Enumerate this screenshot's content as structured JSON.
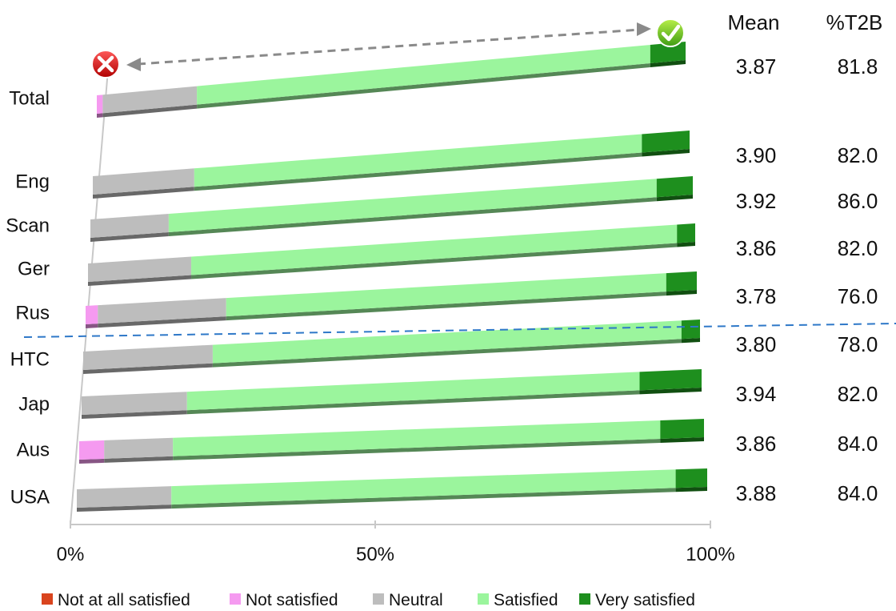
{
  "chart_data": {
    "type": "bar",
    "orientation": "horizontal",
    "stacked": true,
    "percent_stacked": true,
    "categories": [
      "Total",
      "Eng",
      "Scan",
      "Ger",
      "Rus",
      "HTC",
      "Jap",
      "Aus",
      "USA"
    ],
    "series": [
      {
        "name": "Not at all satisfied",
        "color": "#d9441e",
        "values": [
          0,
          0,
          0,
          0,
          0,
          0,
          0,
          0,
          0
        ]
      },
      {
        "name": "Not satisfied",
        "color": "#f59af0",
        "values": [
          1,
          0,
          0,
          0,
          2,
          0,
          0,
          4,
          0
        ]
      },
      {
        "name": "Neutral",
        "color": "#bdbdbd",
        "values": [
          16,
          17,
          13,
          17,
          21,
          21,
          17,
          11,
          15
        ]
      },
      {
        "name": "Satisfied",
        "color": "#9bf59d",
        "values": [
          77,
          75,
          81,
          80,
          72,
          76,
          73,
          78,
          80
        ]
      },
      {
        "name": "Very satisfied",
        "color": "#1e8f1e",
        "values": [
          6,
          8,
          6,
          3,
          5,
          3,
          10,
          7,
          5
        ]
      }
    ],
    "x_ticks": [
      "0%",
      "50%",
      "100%"
    ],
    "xlim": [
      0,
      100
    ],
    "table": {
      "headers": [
        "Mean",
        "%T2B"
      ],
      "mean": [
        "3.87",
        "3.90",
        "3.92",
        "3.86",
        "3.78",
        "3.80",
        "3.94",
        "3.86",
        "3.88"
      ],
      "t2b": [
        "81.8",
        "82.0",
        "86.0",
        "82.0",
        "76.0",
        "78.0",
        "82.0",
        "84.0",
        "84.0"
      ]
    },
    "legend_position": "bottom",
    "grid": false,
    "annotations": {
      "left_icon": "red-cross-icon",
      "right_icon": "green-check-icon",
      "arrow": "double-headed-dashed-arrow",
      "divider": "dashed-blue-line-between-Rus-and-HTC"
    }
  }
}
